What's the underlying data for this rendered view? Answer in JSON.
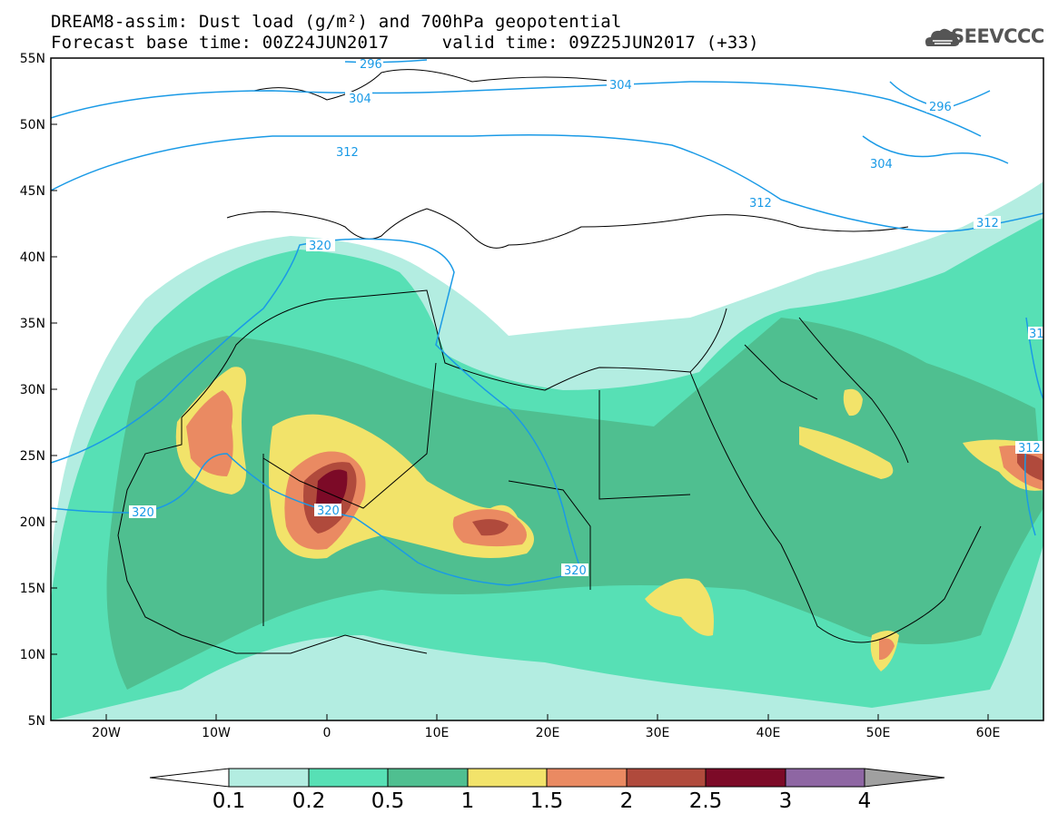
{
  "header": {
    "title_line1": "DREAM8-assim: Dust load (g/m²) and 700hPa geopotential",
    "title_line2": "Forecast base time: 00Z24JUN2017     valid time: 09Z25JUN2017 (+33)"
  },
  "logo": {
    "text": "SEEVCCC",
    "icon": "cloud-logo-icon"
  },
  "map": {
    "latitude_labels": [
      "55N",
      "50N",
      "45N",
      "40N",
      "35N",
      "30N",
      "25N",
      "20N",
      "15N",
      "10N",
      "5N"
    ],
    "longitude_labels": [
      "20W",
      "10W",
      "0",
      "10E",
      "20E",
      "30E",
      "40E",
      "50E",
      "60E"
    ],
    "contour_labels": [
      "296",
      "304",
      "312",
      "320",
      "320",
      "320",
      "320",
      "312",
      "304",
      "296",
      "304",
      "312",
      "312",
      "31"
    ]
  },
  "colorbar": {
    "labels": [
      "0.1",
      "0.2",
      "0.5",
      "1",
      "1.5",
      "2",
      "2.5",
      "3",
      "4"
    ],
    "colors": [
      "#ffffff",
      "#b3ede1",
      "#57e0b5",
      "#4fbf90",
      "#f2e36a",
      "#ea8a62",
      "#b04a3c",
      "#7c0a27",
      "#8e66a3",
      "#a0a0a0"
    ]
  }
}
